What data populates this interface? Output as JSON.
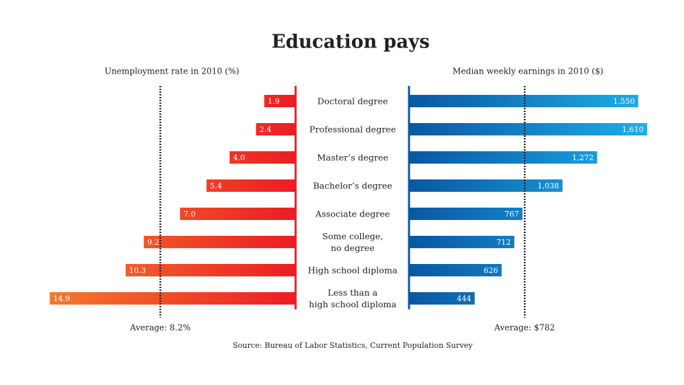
{
  "title": "Education pays",
  "source": "Source: Bureau of Labor Statistics, Current Population Survey",
  "chart_data": [
    {
      "type": "bar",
      "orientation": "horizontal",
      "direction": "left",
      "title": "Unemployment rate in 2010 (%)",
      "categories": [
        "Doctoral degree",
        "Professional degree",
        "Master’s degree",
        "Bachelor’s degree",
        "Associate degree",
        "Some college,\nno degree",
        "High school diploma",
        "Less than a\nhigh school diploma"
      ],
      "values": [
        1.9,
        2.4,
        4.0,
        5.4,
        7.0,
        9.2,
        10.3,
        14.9
      ],
      "value_labels": [
        "1.9",
        "2.4",
        "4.0",
        "5.4",
        "7.0",
        "9.2",
        "10.3",
        "14.9"
      ],
      "colors": [
        "#f47a2c",
        "#ed1c24"
      ],
      "xlim": [
        0,
        15
      ],
      "average": {
        "value": 8.2,
        "label": "Average: 8.2%"
      }
    },
    {
      "type": "bar",
      "orientation": "horizontal",
      "direction": "right",
      "title": "Median weekly earnings in 2010 ($)",
      "values": [
        1550,
        1610,
        1272,
        1038,
        767,
        712,
        626,
        444
      ],
      "value_labels": [
        "1,550",
        "1,610",
        "1,272",
        "1,038",
        "767",
        "712",
        "626",
        "444"
      ],
      "colors": [
        "#0a57a2",
        "#1eb0ec"
      ],
      "xlim": [
        0,
        1650
      ],
      "average": {
        "value": 782,
        "label": "Average: $782"
      }
    }
  ]
}
